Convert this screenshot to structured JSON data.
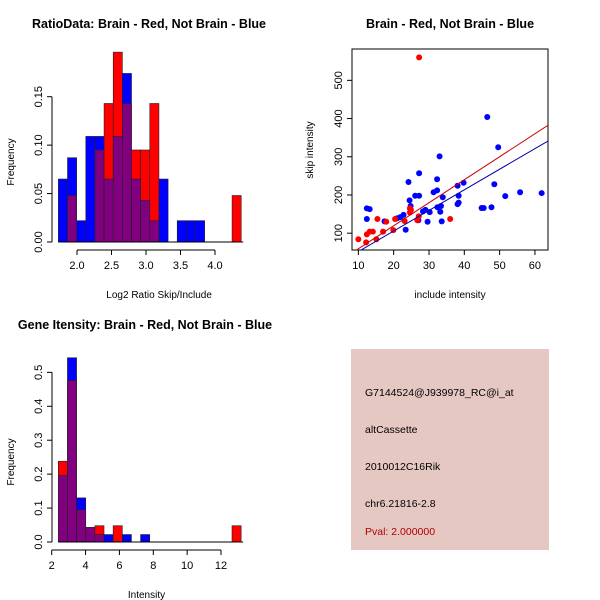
{
  "chart_data": [
    {
      "type": "bar",
      "subtype": "overlaid-histogram",
      "title": "RatioData: Brain - Red, Not Brain - Blue",
      "xlabel": "Log2 Ratio Skip/Include",
      "ylabel": "Frequency",
      "bin_start": 1.73,
      "bin_width": 0.1325,
      "xticks": [
        "2.0",
        "2.5",
        "3.0",
        "3.5",
        "4.0"
      ],
      "yticks": [
        "0.00",
        "0.05",
        "0.10",
        "0.15"
      ],
      "xlim": [
        1.73,
        4.38
      ],
      "ylim": [
        0,
        0.2
      ],
      "series": [
        {
          "name": "Not Brain",
          "color": "#0000ff",
          "values": [
            0.065,
            0.087,
            0.022,
            0.109,
            0.109,
            0.065,
            0.109,
            0.174,
            0.065,
            0.043,
            0.022,
            0.065,
            0,
            0.022,
            0.022,
            0.022,
            0,
            0,
            0,
            0
          ]
        },
        {
          "name": "Brain",
          "color": "#ff0000",
          "values": [
            0,
            0.048,
            0,
            0,
            0.095,
            0.143,
            0.196,
            0.143,
            0.095,
            0.095,
            0.143,
            0,
            0,
            0,
            0,
            0,
            0,
            0,
            0,
            0.048
          ]
        }
      ],
      "overlap_color": "#800080"
    },
    {
      "type": "scatter",
      "title": "Brain - Red, Not Brain - Blue",
      "xlabel": "include intensity",
      "ylabel": "skip intensity",
      "xticks": [
        "10",
        "20",
        "30",
        "40",
        "50",
        "60"
      ],
      "yticks": [
        "100",
        "200",
        "300",
        "400",
        "500"
      ],
      "xlim": [
        8.2,
        63.7
      ],
      "ylim": [
        56,
        582
      ],
      "series": [
        {
          "name": "Not Brain",
          "color": "#0000ff",
          "points": [
            [
              12.4,
              165
            ],
            [
              13.2,
              163
            ],
            [
              12.4,
              137
            ],
            [
              17.4,
              131
            ],
            [
              21,
              139
            ],
            [
              21.9,
              142
            ],
            [
              22.8,
              148
            ],
            [
              23.4,
              109
            ],
            [
              24.2,
              234
            ],
            [
              24.5,
              186
            ],
            [
              24.8,
              171
            ],
            [
              26.1,
              198
            ],
            [
              27.2,
              198
            ],
            [
              27.2,
              257
            ],
            [
              27,
              134
            ],
            [
              28.3,
              157
            ],
            [
              29,
              161
            ],
            [
              29.6,
              130
            ],
            [
              30.2,
              155
            ],
            [
              31.3,
              207
            ],
            [
              32.3,
              212
            ],
            [
              32.3,
              241
            ],
            [
              33,
              301
            ],
            [
              32.4,
              168
            ],
            [
              33.2,
              156
            ],
            [
              33.6,
              131
            ],
            [
              33.4,
              171
            ],
            [
              33.9,
              194
            ],
            [
              38.1,
              224
            ],
            [
              38.4,
              198
            ],
            [
              38.4,
              180
            ],
            [
              38.1,
              176
            ],
            [
              39.8,
              232
            ],
            [
              46.5,
              404
            ],
            [
              44.9,
              166
            ],
            [
              45.5,
              166
            ],
            [
              47.7,
              168
            ],
            [
              48.5,
              228
            ],
            [
              49.6,
              325
            ],
            [
              51.6,
              197
            ],
            [
              55.8,
              207
            ],
            [
              61.9,
              205
            ]
          ],
          "fit": {
            "slope": 5.39,
            "intercept": -2.1
          }
        },
        {
          "name": "Brain",
          "color": "#ff0000",
          "points": [
            [
              10,
              84
            ],
            [
              12.2,
              76
            ],
            [
              12.4,
              97
            ],
            [
              13.2,
              104
            ],
            [
              14.1,
              104
            ],
            [
              15.1,
              84
            ],
            [
              15.4,
              137
            ],
            [
              17,
              104
            ],
            [
              17.9,
              130
            ],
            [
              19.9,
              108
            ],
            [
              20.4,
              137
            ],
            [
              23.1,
              132
            ],
            [
              24.6,
              154
            ],
            [
              24.6,
              165
            ],
            [
              24.9,
              161
            ],
            [
              26.7,
              134
            ],
            [
              27.1,
              144
            ],
            [
              27.2,
              560
            ],
            [
              36,
              137
            ]
          ],
          "fit": {
            "slope": 6.02,
            "intercept": -1
          }
        }
      ]
    },
    {
      "type": "bar",
      "subtype": "overlaid-histogram",
      "title": "Gene Itensity: Brain - Red, Not Brain - Blue",
      "xlabel": "Intensity",
      "ylabel": "Frequency",
      "bin_start": 2.39,
      "bin_width": 0.54,
      "xticks": [
        "2",
        "4",
        "6",
        "8",
        "10",
        "12"
      ],
      "yticks": [
        "0.0",
        "0.1",
        "0.2",
        "0.3",
        "0.4",
        "0.5"
      ],
      "xlim": [
        2,
        13.2
      ],
      "ylim": [
        0,
        0.55
      ],
      "series": [
        {
          "name": "Not Brain",
          "color": "#0000ff",
          "values": [
            0.196,
            0.543,
            0.13,
            0.043,
            0.022,
            0.022,
            0,
            0.022,
            0,
            0.022,
            0,
            0,
            0,
            0,
            0,
            0,
            0,
            0,
            0,
            0
          ]
        },
        {
          "name": "Brain",
          "color": "#ff0000",
          "values": [
            0.238,
            0.476,
            0.095,
            0.043,
            0.048,
            0,
            0.048,
            0,
            0,
            0,
            0,
            0,
            0,
            0,
            0,
            0,
            0,
            0,
            0,
            0.048
          ]
        }
      ],
      "overlap_color": "#800080"
    }
  ],
  "info_panel": {
    "background": "#e5c8c2",
    "probe_id": "G7144524@J939978_RC@i_at",
    "event_type": "altCassette",
    "gene": "2010012C16Rik",
    "location": "chr6.21816-2.8",
    "pval": "Pval: 2.000000",
    "pval_color": "#b00000"
  }
}
